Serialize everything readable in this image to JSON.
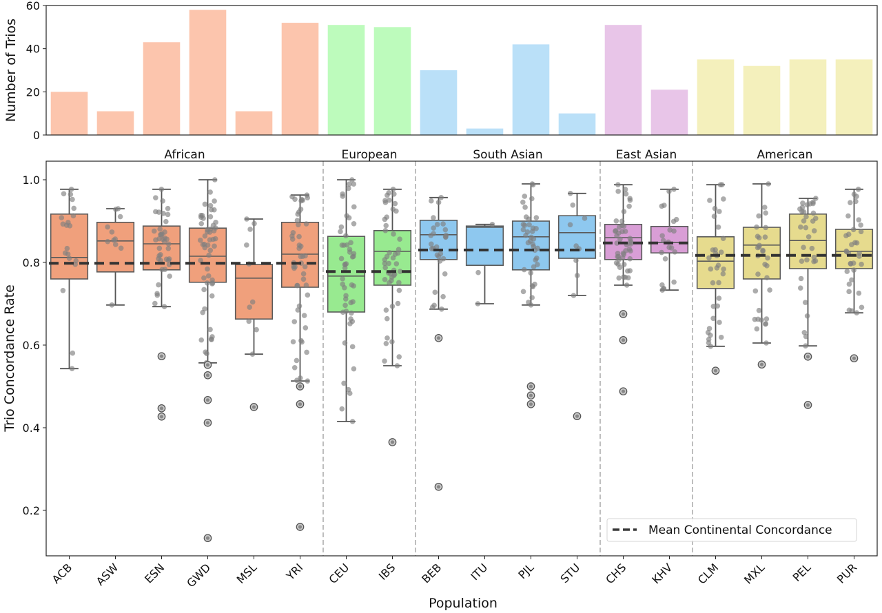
{
  "chart_data": [
    {
      "type": "bar",
      "ylabel": "Number of Trios",
      "xlabel": "",
      "ylim": [
        0,
        60
      ],
      "yticks": [
        0,
        20,
        40,
        60
      ],
      "categories": [
        "ACB",
        "ASW",
        "ESN",
        "GWD",
        "MSL",
        "YRI",
        "CEU",
        "IBS",
        "BEB",
        "ITU",
        "PJL",
        "STU",
        "CHS",
        "KHV",
        "CLM",
        "MXL",
        "PEL",
        "PUR"
      ],
      "values": [
        20,
        11,
        43,
        58,
        11,
        52,
        51,
        50,
        30,
        3,
        42,
        10,
        51,
        21,
        35,
        32,
        35,
        35
      ],
      "groups": [
        "African",
        "African",
        "African",
        "African",
        "African",
        "African",
        "European",
        "European",
        "South Asian",
        "South Asian",
        "South Asian",
        "South Asian",
        "East Asian",
        "East Asian",
        "American",
        "American",
        "American",
        "American"
      ],
      "bar_colors": {
        "African": "#fcc5ad",
        "European": "#bdfbbc",
        "South Asian": "#bae0f8",
        "East Asian": "#e8c5e8",
        "American": "#f4f0bc"
      }
    },
    {
      "type": "box",
      "xlabel": "Population",
      "ylabel": "Trio Concordance Rate",
      "ylim": [
        0.09,
        1.045
      ],
      "yticks": [
        0.2,
        0.4,
        0.6,
        0.8,
        1.0
      ],
      "ytick_labels": [
        "0.2",
        "0.4",
        "0.6",
        "0.8",
        "1.0"
      ],
      "continents": [
        {
          "name": "African",
          "populations": [
            "ACB",
            "ASW",
            "ESN",
            "GWD",
            "MSL",
            "YRI"
          ],
          "mean": 0.798,
          "color": "#f0a07c"
        },
        {
          "name": "European",
          "populations": [
            "CEU",
            "IBS"
          ],
          "mean": 0.778,
          "color": "#98ea90"
        },
        {
          "name": "South Asian",
          "populations": [
            "BEB",
            "ITU",
            "PJL",
            "STU"
          ],
          "mean": 0.83,
          "color": "#8ec8ef"
        },
        {
          "name": "East Asian",
          "populations": [
            "CHS",
            "KHV"
          ],
          "mean": 0.847,
          "color": "#d99ed6"
        },
        {
          "name": "American",
          "populations": [
            "CLM",
            "MXL",
            "PEL",
            "PUR"
          ],
          "mean": 0.817,
          "color": "#e6db8e"
        }
      ],
      "boxes": [
        {
          "pop": "ACB",
          "n": 20,
          "whislo": 0.543,
          "q1": 0.76,
          "med": 0.812,
          "q3": 0.917,
          "whishi": 0.977,
          "fliers": []
        },
        {
          "pop": "ASW",
          "n": 11,
          "whislo": 0.697,
          "q1": 0.777,
          "med": 0.852,
          "q3": 0.897,
          "whishi": 0.93,
          "fliers": []
        },
        {
          "pop": "ESN",
          "n": 43,
          "whislo": 0.693,
          "q1": 0.782,
          "med": 0.845,
          "q3": 0.888,
          "whishi": 0.977,
          "fliers": [
            0.573,
            0.447,
            0.427
          ]
        },
        {
          "pop": "GWD",
          "n": 58,
          "whislo": 0.557,
          "q1": 0.752,
          "med": 0.815,
          "q3": 0.883,
          "whishi": 1.0,
          "fliers": [
            0.552,
            0.527,
            0.467,
            0.412,
            0.133
          ]
        },
        {
          "pop": "MSL",
          "n": 11,
          "whislo": 0.578,
          "q1": 0.663,
          "med": 0.762,
          "q3": 0.795,
          "whishi": 0.905,
          "fliers": [
            0.45
          ]
        },
        {
          "pop": "YRI",
          "n": 52,
          "whislo": 0.513,
          "q1": 0.74,
          "med": 0.82,
          "q3": 0.897,
          "whishi": 0.963,
          "fliers": [
            0.5,
            0.457,
            0.16
          ]
        },
        {
          "pop": "CEU",
          "n": 51,
          "whislo": 0.415,
          "q1": 0.68,
          "med": 0.767,
          "q3": 0.863,
          "whishi": 1.0,
          "fliers": []
        },
        {
          "pop": "IBS",
          "n": 50,
          "whislo": 0.55,
          "q1": 0.745,
          "med": 0.827,
          "q3": 0.877,
          "whishi": 0.977,
          "fliers": [
            0.365
          ]
        },
        {
          "pop": "BEB",
          "n": 30,
          "whislo": 0.687,
          "q1": 0.807,
          "med": 0.867,
          "q3": 0.902,
          "whishi": 0.957,
          "fliers": [
            0.617,
            0.257
          ]
        },
        {
          "pop": "ITU",
          "n": 3,
          "whislo": 0.7,
          "q1": 0.793,
          "med": 0.885,
          "q3": 0.888,
          "whishi": 0.892,
          "fliers": []
        },
        {
          "pop": "PJL",
          "n": 42,
          "whislo": 0.697,
          "q1": 0.782,
          "med": 0.862,
          "q3": 0.9,
          "whishi": 0.99,
          "fliers": [
            0.5,
            0.478,
            0.457
          ]
        },
        {
          "pop": "STU",
          "n": 10,
          "whislo": 0.72,
          "q1": 0.81,
          "med": 0.872,
          "q3": 0.913,
          "whishi": 0.967,
          "fliers": [
            0.428
          ]
        },
        {
          "pop": "CHS",
          "n": 51,
          "whislo": 0.745,
          "q1": 0.807,
          "med": 0.86,
          "q3": 0.892,
          "whishi": 0.988,
          "fliers": [
            0.675,
            0.612,
            0.488
          ]
        },
        {
          "pop": "KHV",
          "n": 21,
          "whislo": 0.733,
          "q1": 0.823,
          "med": 0.848,
          "q3": 0.887,
          "whishi": 0.977,
          "fliers": []
        },
        {
          "pop": "CLM",
          "n": 35,
          "whislo": 0.597,
          "q1": 0.737,
          "med": 0.803,
          "q3": 0.862,
          "whishi": 0.988,
          "fliers": [
            0.538
          ]
        },
        {
          "pop": "MXL",
          "n": 32,
          "whislo": 0.605,
          "q1": 0.76,
          "med": 0.842,
          "q3": 0.885,
          "whishi": 0.99,
          "fliers": [
            0.553
          ]
        },
        {
          "pop": "PEL",
          "n": 35,
          "whislo": 0.598,
          "q1": 0.785,
          "med": 0.853,
          "q3": 0.917,
          "whishi": 0.955,
          "fliers": [
            0.572,
            0.455
          ]
        },
        {
          "pop": "PUR",
          "n": 35,
          "whislo": 0.678,
          "q1": 0.785,
          "med": 0.827,
          "q3": 0.88,
          "whishi": 0.977,
          "fliers": [
            0.568
          ]
        }
      ],
      "legend": {
        "label": "Mean Continental Concordance",
        "position": "lower-right"
      },
      "grid": false
    }
  ]
}
